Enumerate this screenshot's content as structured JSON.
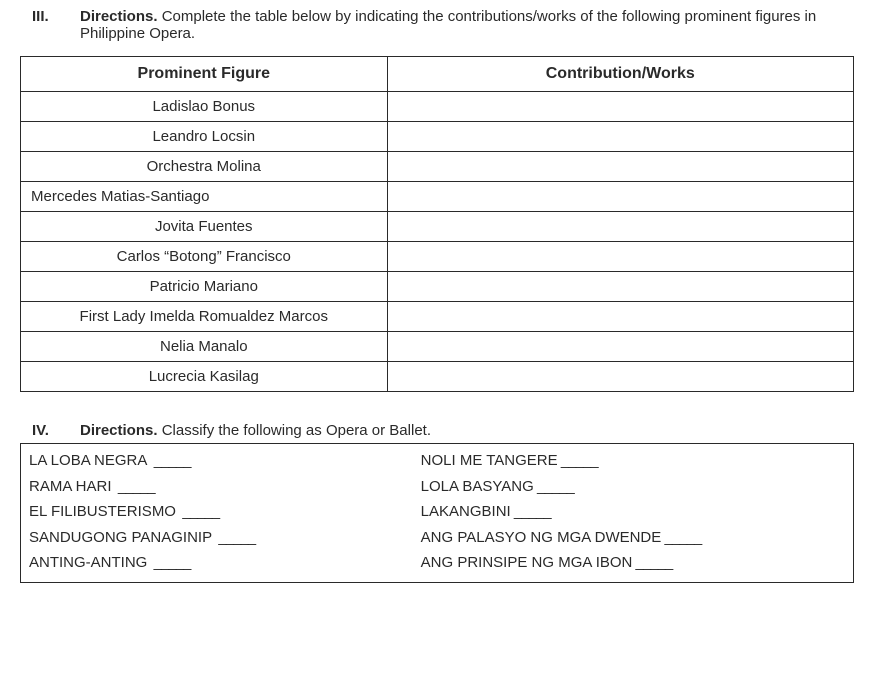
{
  "section3": {
    "number": "III.",
    "label": "Directions.",
    "text": "Complete the table below by indicating the contributions/works of the following prominent figures in Philippine Opera.",
    "table": {
      "headers": [
        "Prominent Figure",
        "Contribution/Works"
      ],
      "rows": [
        {
          "figure": "Ladislao Bonus",
          "contribution": "",
          "align": "center"
        },
        {
          "figure": "Leandro Locsin",
          "contribution": "",
          "align": "center"
        },
        {
          "figure": "Orchestra Molina",
          "contribution": "",
          "align": "center"
        },
        {
          "figure": "Mercedes Matias-Santiago",
          "contribution": "",
          "align": "left"
        },
        {
          "figure": "Jovita Fuentes",
          "contribution": "",
          "align": "center"
        },
        {
          "figure": "Carlos “Botong” Francisco",
          "contribution": "",
          "align": "center"
        },
        {
          "figure": "Patricio Mariano",
          "contribution": "",
          "align": "center"
        },
        {
          "figure": "First Lady Imelda Romualdez Marcos",
          "contribution": "",
          "align": "center"
        },
        {
          "figure": "Nelia Manalo",
          "contribution": "",
          "align": "center"
        },
        {
          "figure": "Lucrecia Kasilag",
          "contribution": "",
          "align": "center"
        }
      ]
    }
  },
  "section4": {
    "number": "IV.",
    "label": "Directions.",
    "text": "Classify the following as Opera or Ballet.",
    "blank": "_____",
    "items": [
      {
        "left": "LA LOBA NEGRA",
        "right": "NOLI ME TANGERE"
      },
      {
        "left": "RAMA HARI",
        "right": "LOLA BASYANG"
      },
      {
        "left": "EL FILIBUSTERISMO",
        "right": "LAKANGBINI"
      },
      {
        "left": "SANDUGONG PANAGINIP",
        "right": "ANG PALASYO NG MGA DWENDE"
      },
      {
        "left": "ANTING-ANTING",
        "right": "ANG PRINSIPE NG MGA IBON"
      }
    ]
  }
}
